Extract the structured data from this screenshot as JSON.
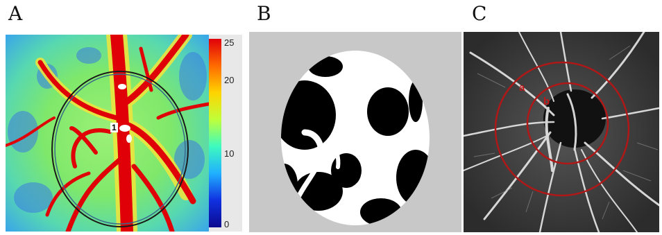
{
  "panels": {
    "a": {
      "label": "A"
    },
    "b": {
      "label": "B"
    },
    "c": {
      "label": "C"
    }
  },
  "colorbar": {
    "ticks": [
      "25",
      "20",
      "10",
      "0"
    ],
    "stops": [
      "#e0000a",
      "#ff6a00",
      "#ffd400",
      "#bfff3a",
      "#3dfac0",
      "#20b0ff",
      "#1030e0",
      "#0b0a8f"
    ]
  },
  "panel_a_marker": "1",
  "panel_c_circles": {
    "outer": "a",
    "inner": "b",
    "color": "#b01818"
  },
  "colors": {
    "vessel_red": "#e00008",
    "background_gray": "#c8c8c8"
  }
}
